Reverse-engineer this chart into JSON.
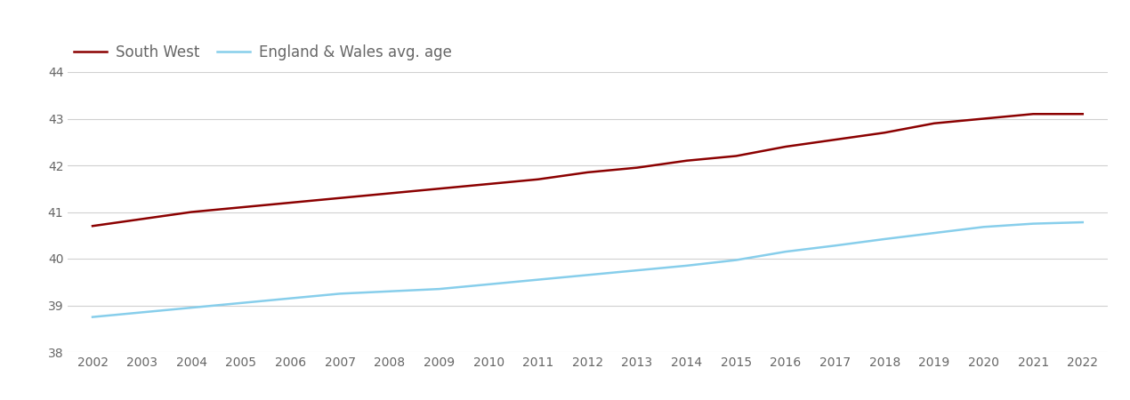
{
  "years": [
    2002,
    2003,
    2004,
    2005,
    2006,
    2007,
    2008,
    2009,
    2010,
    2011,
    2012,
    2013,
    2014,
    2015,
    2016,
    2017,
    2018,
    2019,
    2020,
    2021,
    2022
  ],
  "south_west": [
    40.7,
    40.85,
    41.0,
    41.1,
    41.2,
    41.3,
    41.4,
    41.5,
    41.6,
    41.7,
    41.85,
    41.95,
    42.1,
    42.2,
    42.4,
    42.55,
    42.7,
    42.9,
    43.0,
    43.1,
    43.1
  ],
  "england_wales": [
    38.75,
    38.85,
    38.95,
    39.05,
    39.15,
    39.25,
    39.3,
    39.35,
    39.45,
    39.55,
    39.65,
    39.75,
    39.85,
    39.97,
    40.15,
    40.28,
    40.42,
    40.55,
    40.68,
    40.75,
    40.78
  ],
  "south_west_color": "#8b0000",
  "england_wales_color": "#87CEEB",
  "south_west_label": "South West",
  "england_wales_label": "England & Wales avg. age",
  "ylim": [
    38,
    44
  ],
  "yticks": [
    38,
    39,
    40,
    41,
    42,
    43,
    44
  ],
  "background_color": "#ffffff",
  "grid_color": "#d0d0d0",
  "line_width": 1.8,
  "tick_label_color": "#666666",
  "legend_fontsize": 12,
  "axis_fontsize": 10
}
